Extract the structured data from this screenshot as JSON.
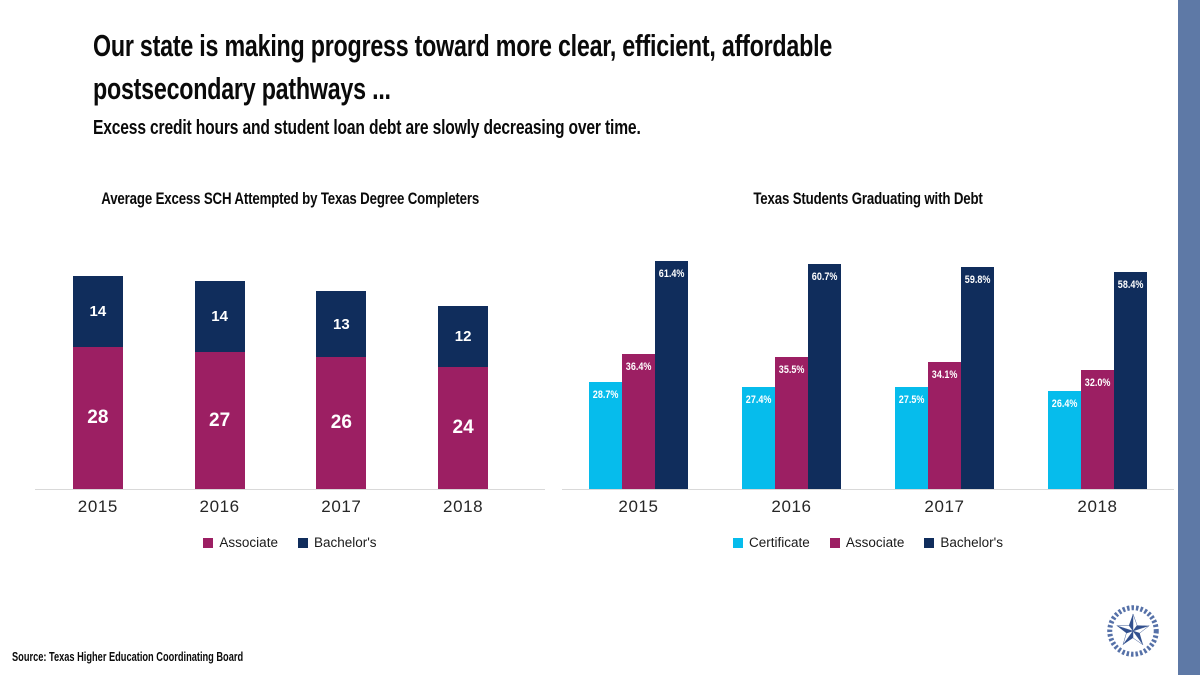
{
  "slide": {
    "title_line1": "Our state is making progress toward more clear, efficient, affordable",
    "title_line2": "postsecondary pathways ...",
    "subtitle": "Excess credit hours and student loan debt are slowly decreasing over time.",
    "source": "Source: Texas Higher Education Coordinating Board",
    "accent_stripe_color": "#5E79A6",
    "logo_color": "#32508E",
    "logo_wreath_color": "#5671A8"
  },
  "colors": {
    "certificate": "#06BCEC",
    "associate": "#9C1F63",
    "bachelors": "#102D5C",
    "axis_line": "#D9D9D9"
  },
  "chart_data": [
    {
      "type": "bar",
      "subtype": "stacked",
      "title": "Average Excess SCH Attempted by Texas Degree Completers",
      "categories": [
        "2015",
        "2016",
        "2017",
        "2018"
      ],
      "series": [
        {
          "name": "Associate",
          "color": "#9C1F63",
          "values": [
            28,
            27,
            26,
            24
          ],
          "labels": [
            "28",
            "27",
            "26",
            "24"
          ]
        },
        {
          "name": "Bachelor's",
          "color": "#102D5C",
          "values": [
            14,
            14,
            13,
            12
          ],
          "labels": [
            "14",
            "14",
            "13",
            "12"
          ]
        }
      ],
      "xlabel": "",
      "ylabel": "",
      "legend_position": "bottom",
      "value_labels": "inside-center",
      "axis": "hidden-y, light baseline"
    },
    {
      "type": "bar",
      "subtype": "grouped",
      "title": "Texas Students Graduating with Debt",
      "categories": [
        "2015",
        "2016",
        "2017",
        "2018"
      ],
      "series": [
        {
          "name": "Certificate",
          "color": "#06BCEC",
          "values": [
            28.7,
            27.4,
            27.5,
            26.4
          ],
          "labels": [
            "28.7%",
            "27.4%",
            "27.5%",
            "26.4%"
          ]
        },
        {
          "name": "Associate",
          "color": "#9C1F63",
          "values": [
            36.4,
            35.5,
            34.1,
            32.0
          ],
          "labels": [
            "36.4%",
            "35.5%",
            "34.1%",
            "32.0%"
          ]
        },
        {
          "name": "Bachelor's",
          "color": "#102D5C",
          "values": [
            61.4,
            60.7,
            59.8,
            58.4
          ],
          "labels": [
            "61.4%",
            "60.7%",
            "59.8%",
            "58.4%"
          ]
        }
      ],
      "xlabel": "",
      "ylabel": "",
      "legend_position": "bottom",
      "value_labels": "inside-top",
      "axis": "hidden-y, light baseline"
    }
  ]
}
